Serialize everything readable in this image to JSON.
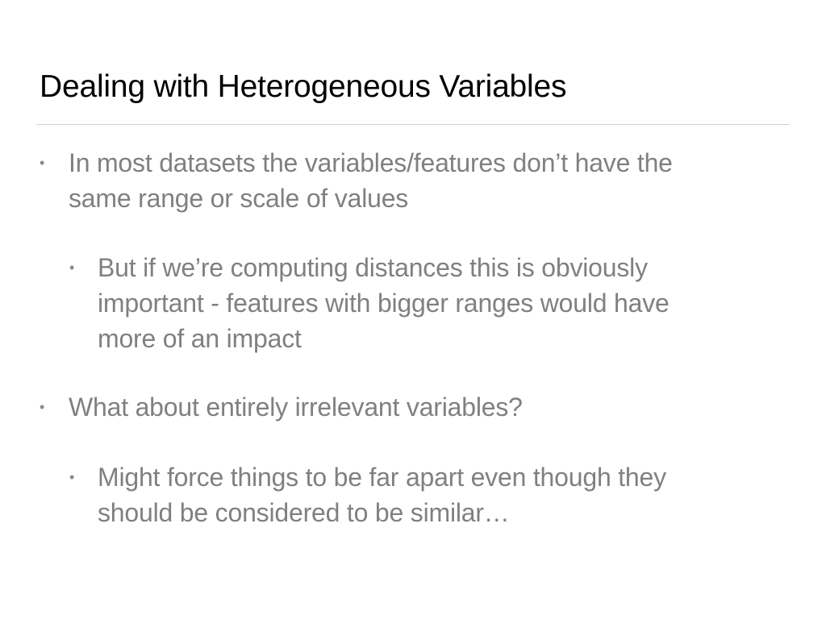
{
  "slide": {
    "title": "Dealing with Heterogeneous Variables",
    "bullet_glyph": "•",
    "bullets": [
      {
        "level": 1,
        "lines": [
          "In most datasets the variables/features don’t have the",
          "same range or scale of values"
        ]
      },
      {
        "level": 2,
        "lines": [
          "But if we’re computing distances this is obviously",
          "important - features with bigger ranges would have",
          "more of an impact"
        ]
      },
      {
        "level": 1,
        "lines": [
          "What about entirely irrelevant variables?"
        ]
      },
      {
        "level": 2,
        "lines": [
          "Might force things to be far apart even though they",
          "should be considered to be similar…"
        ]
      }
    ]
  },
  "colors": {
    "title": "#000000",
    "body_text": "#808080",
    "divider": "#d2d2d2",
    "background": "#ffffff"
  }
}
